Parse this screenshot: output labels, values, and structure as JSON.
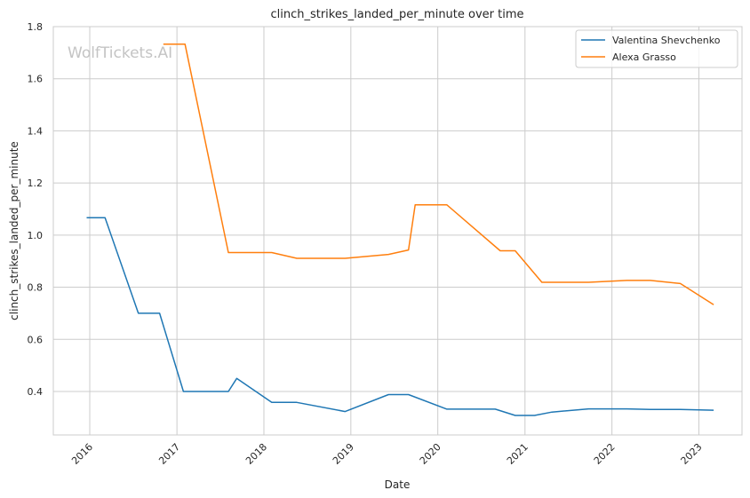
{
  "chart_data": {
    "type": "line",
    "title": "clinch_strikes_landed_per_minute over time",
    "xlabel": "Date",
    "ylabel": "clinch_strikes_landed_per_minute",
    "watermark": "WolfTickets.AI",
    "x_ticks": [
      "2016",
      "2017",
      "2018",
      "2019",
      "2020",
      "2021",
      "2022",
      "2023"
    ],
    "y_ticks": [
      "0.4",
      "0.6",
      "0.8",
      "1.0",
      "1.2",
      "1.4",
      "1.6",
      "1.8"
    ],
    "xlim": [
      "2015-08-01",
      "2023-07-01"
    ],
    "ylim": [
      0.233,
      1.8
    ],
    "grid": true,
    "legend_position": "top-right",
    "series": [
      {
        "name": "Valentina Shevchenko",
        "color": "#1f77b4",
        "points": [
          [
            "2015-12-19",
            1.067
          ],
          [
            "2016-03-05",
            1.067
          ],
          [
            "2016-07-23",
            0.7
          ],
          [
            "2016-10-20",
            0.7
          ],
          [
            "2017-01-28",
            0.4
          ],
          [
            "2017-08-05",
            0.4
          ],
          [
            "2017-09-09",
            0.45
          ],
          [
            "2018-02-03",
            0.358
          ],
          [
            "2018-05-19",
            0.358
          ],
          [
            "2018-12-08",
            0.323
          ],
          [
            "2019-06-08",
            0.388
          ],
          [
            "2019-08-31",
            0.388
          ],
          [
            "2020-02-08",
            0.332
          ],
          [
            "2020-08-29",
            0.332
          ],
          [
            "2020-11-21",
            0.308
          ],
          [
            "2021-02-10",
            0.308
          ],
          [
            "2021-04-24",
            0.321
          ],
          [
            "2021-09-25",
            0.333
          ],
          [
            "2022-03-05",
            0.333
          ],
          [
            "2022-06-11",
            0.331
          ],
          [
            "2022-10-15",
            0.331
          ],
          [
            "2023-03-04",
            0.328
          ]
        ]
      },
      {
        "name": "Alexa Grasso",
        "color": "#ff7f0e",
        "points": [
          [
            "2016-11-05",
            1.733
          ],
          [
            "2017-02-04",
            1.733
          ],
          [
            "2017-08-05",
            0.933
          ],
          [
            "2018-02-03",
            0.933
          ],
          [
            "2018-05-19",
            0.911
          ],
          [
            "2018-12-08",
            0.911
          ],
          [
            "2019-06-08",
            0.926
          ],
          [
            "2019-08-31",
            0.943
          ],
          [
            "2019-09-28",
            1.116
          ],
          [
            "2020-02-08",
            1.116
          ],
          [
            "2020-09-19",
            0.94
          ],
          [
            "2020-11-21",
            0.94
          ],
          [
            "2021-03-13",
            0.819
          ],
          [
            "2021-09-25",
            0.819
          ],
          [
            "2022-03-05",
            0.826
          ],
          [
            "2022-06-11",
            0.826
          ],
          [
            "2022-10-15",
            0.814
          ],
          [
            "2023-03-04",
            0.733
          ]
        ]
      }
    ]
  }
}
